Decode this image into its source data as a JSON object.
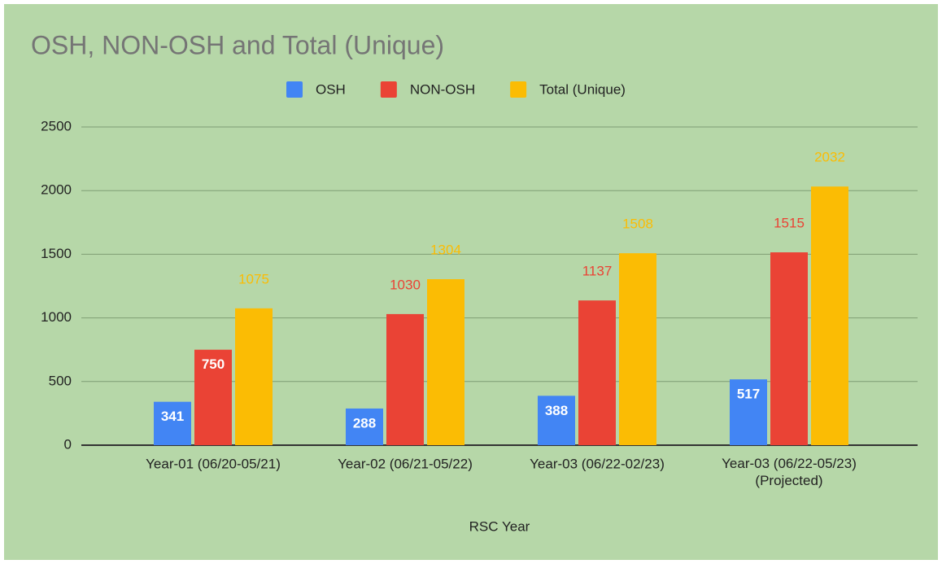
{
  "chart_data": {
    "type": "bar",
    "title": "OSH, NON-OSH and Total (Unique)",
    "x_label": "RSC Year",
    "categories": [
      "Year-01 (06/20-05/21)",
      "Year-02 (06/21-05/22)",
      "Year-03 (06/22-02/23)",
      "Year-03 (06/22-05/23)\n(Projected)"
    ],
    "series": [
      {
        "name": "OSH",
        "color": "#4285f4",
        "values": [
          341,
          288,
          388,
          517
        ]
      },
      {
        "name": "NON-OSH",
        "color": "#ea4335",
        "values": [
          750,
          1030,
          1137,
          1515
        ]
      },
      {
        "name": "Total (Unique)",
        "color": "#fbbc04",
        "values": [
          1075,
          1304,
          1508,
          2032
        ]
      }
    ],
    "ylim": [
      0,
      2500
    ],
    "yticks": [
      0,
      500,
      1000,
      1500,
      2000,
      2500
    ],
    "grid": true,
    "legend": "top"
  }
}
